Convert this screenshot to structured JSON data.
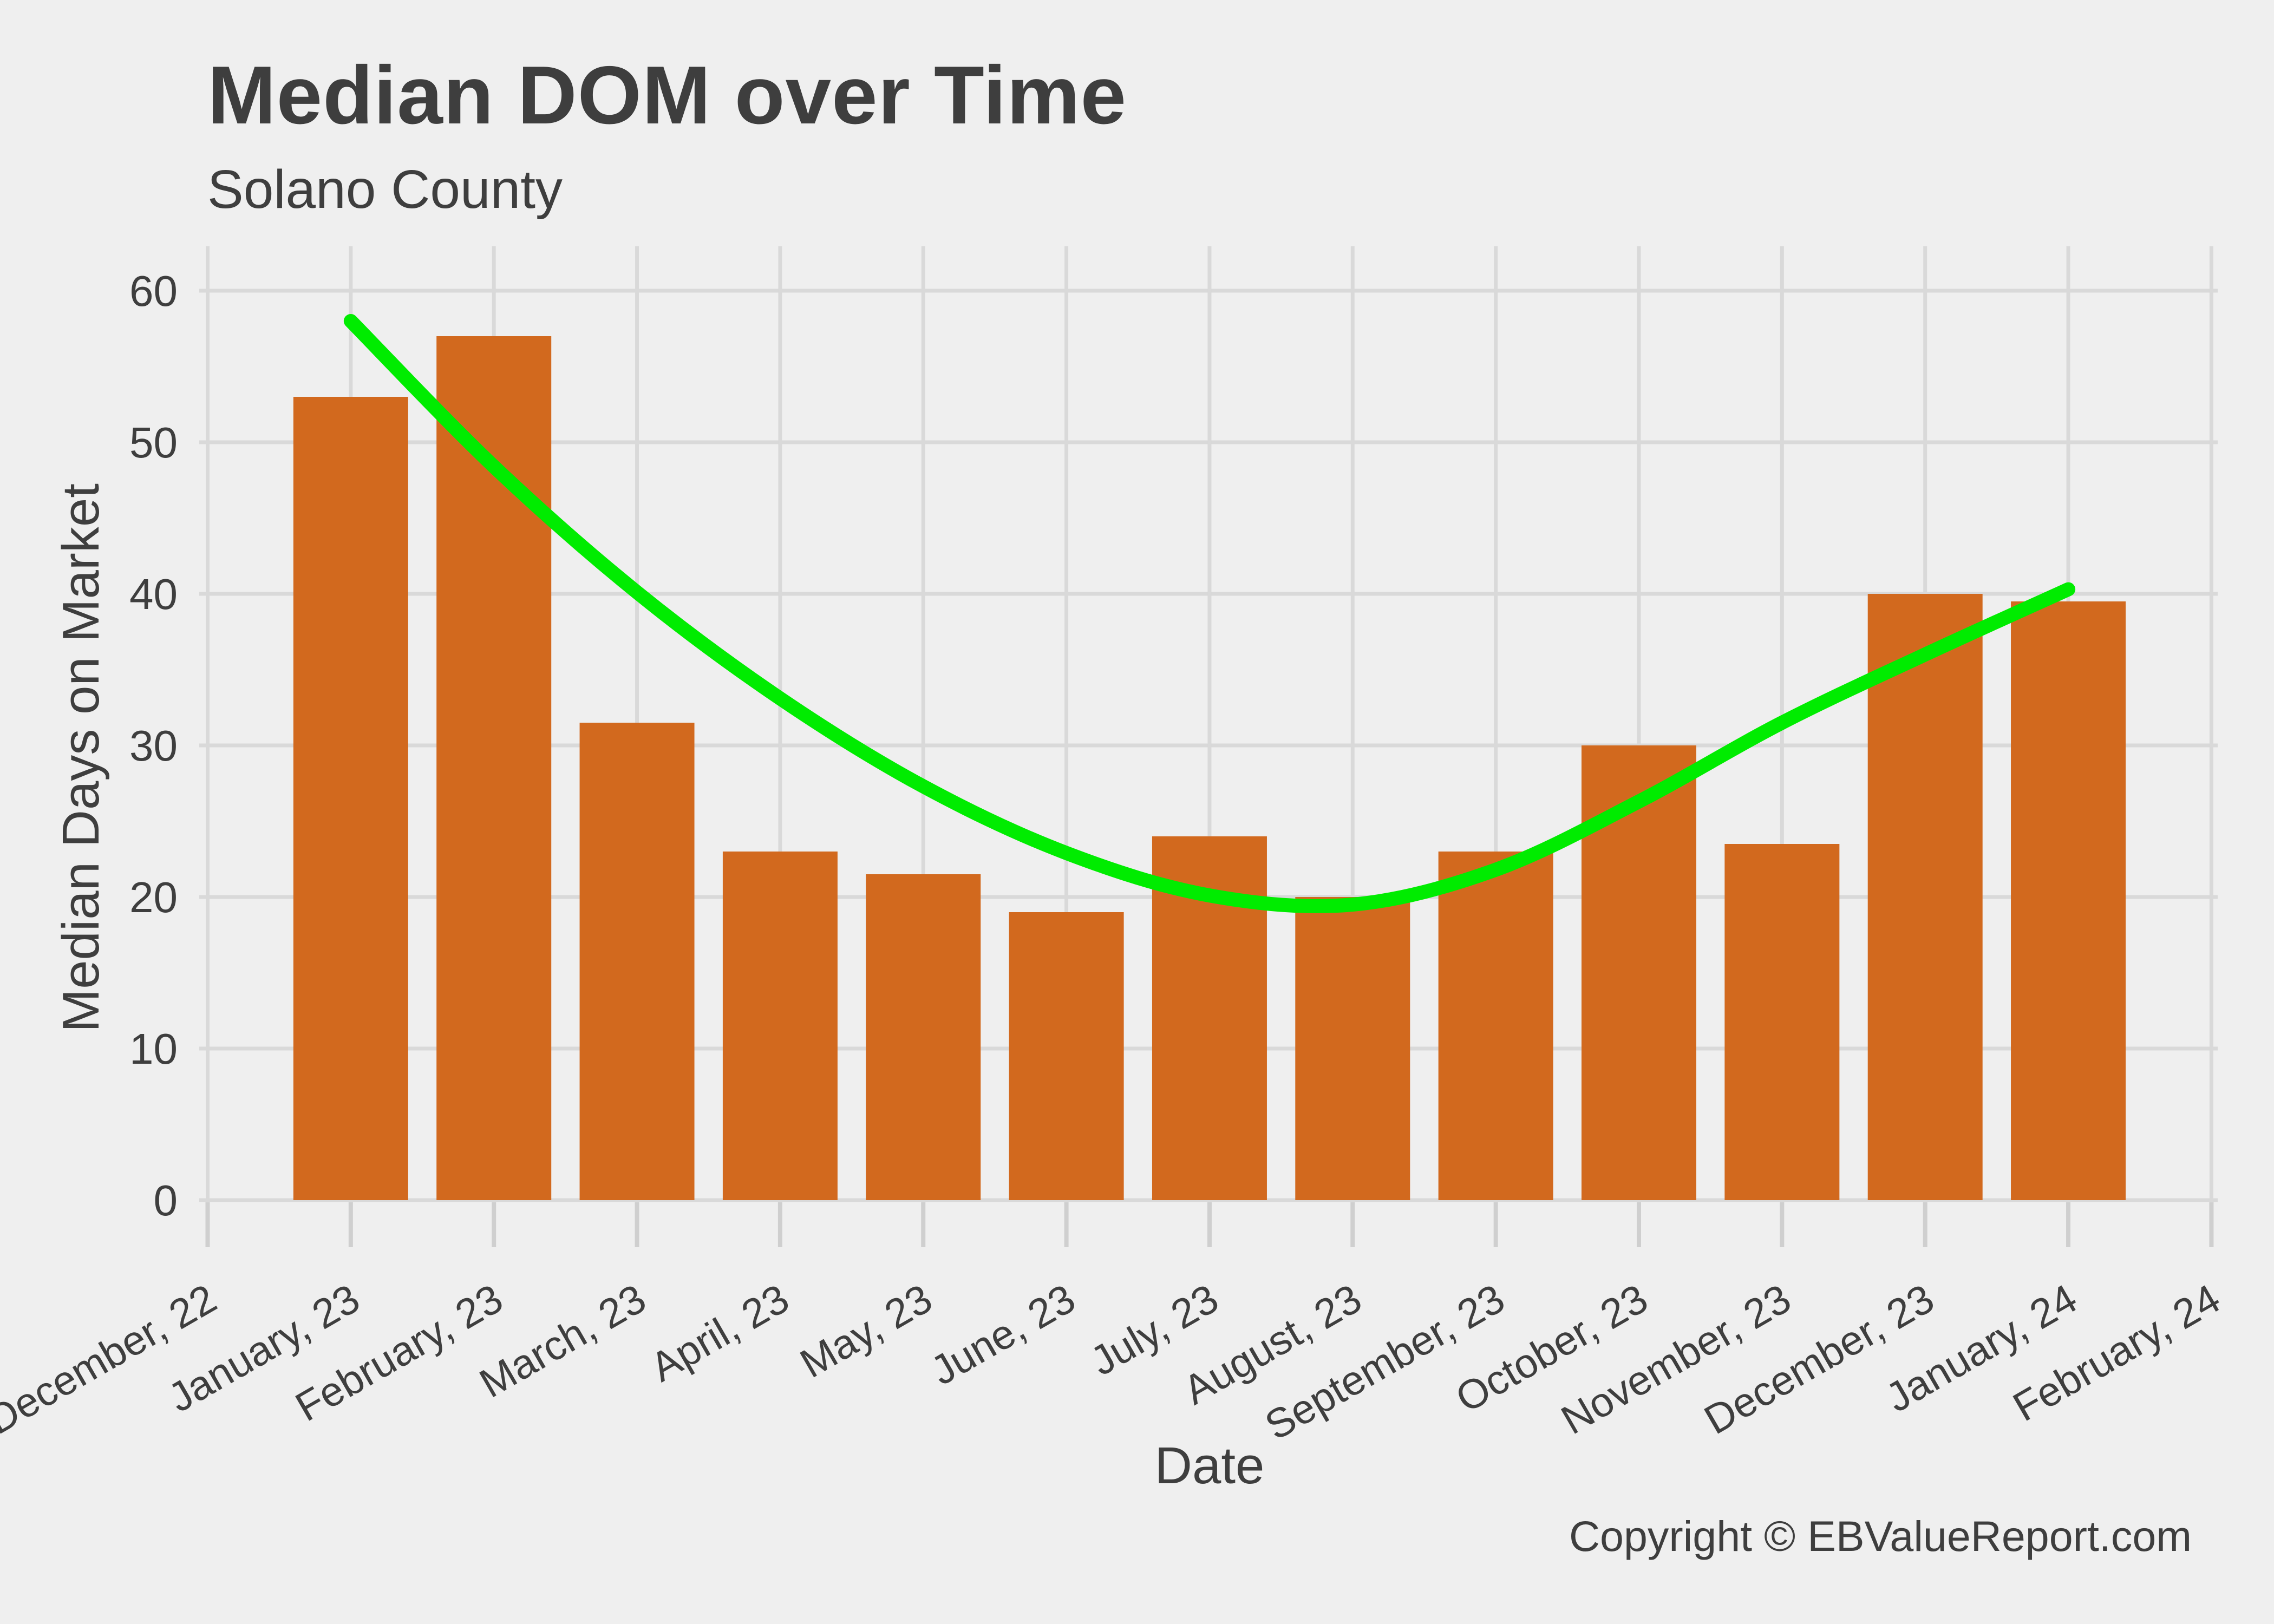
{
  "header": {
    "title": "Median DOM over Time",
    "subtitle": "Solano County"
  },
  "footer": {
    "copyright": "Copyright  © EBValueReport.com"
  },
  "chart_data": {
    "type": "bar",
    "title": "Median DOM over Time",
    "subtitle": "Solano County",
    "xlabel": "Date",
    "ylabel": "Median Days on Market",
    "categories": [
      "December, 22",
      "January, 23",
      "February, 23",
      "March, 23",
      "April, 23",
      "May, 23",
      "June, 23",
      "July, 23",
      "August, 23",
      "September, 23",
      "October, 23",
      "November, 23",
      "December, 23",
      "January, 24",
      "February, 24"
    ],
    "series": [
      {
        "name": "Median Days on Market",
        "type": "bar",
        "values": [
          null,
          53,
          57,
          31.5,
          23,
          21.5,
          19,
          24,
          20,
          23,
          30,
          23.5,
          40,
          39.5,
          null
        ]
      },
      {
        "name": "Trend",
        "type": "line",
        "start_category_index": 1,
        "values": [
          58,
          48.4,
          40.1,
          33.1,
          27.3,
          22.9,
          20.1,
          19.5,
          21.8,
          26.3,
          31.5,
          36.0,
          40.3
        ]
      }
    ],
    "ylim": [
      0,
      60
    ],
    "yticks": [
      0,
      10,
      20,
      30,
      40,
      50,
      60
    ],
    "grid": true,
    "legend_position": "none",
    "colors": {
      "bar": "#D2691E",
      "trend": "#00EC00",
      "background": "#EFEFEF",
      "gridline": "#D9D9D9",
      "tick_mark": "#CFCFCF",
      "text": "#3E3E3E"
    }
  }
}
